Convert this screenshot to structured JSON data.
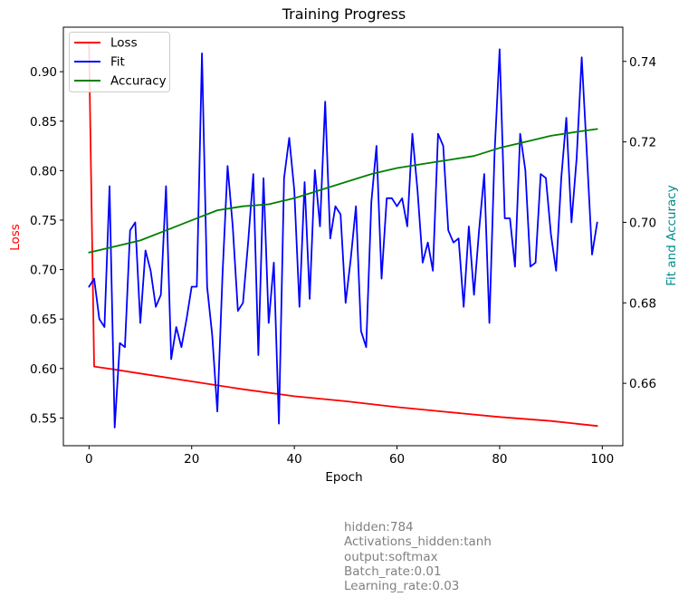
{
  "chart_data": {
    "type": "line",
    "title": "Training Progress",
    "xlabel": "Epoch",
    "ylabel_left": "Loss",
    "ylabel_right": "Fit and Accuracy",
    "xlim": [
      -5,
      104
    ],
    "ylim_left": [
      0.522,
      0.945
    ],
    "ylim_right": [
      0.6445,
      0.7485
    ],
    "x_ticks": [
      0,
      20,
      40,
      60,
      80,
      100
    ],
    "y_ticks_left": [
      0.55,
      0.6,
      0.65,
      0.7,
      0.75,
      0.8,
      0.85,
      0.9
    ],
    "y_ticks_right": [
      0.66,
      0.68,
      0.7,
      0.72,
      0.74
    ],
    "grid": false,
    "legend_position": "top-left",
    "series": [
      {
        "name": "Loss",
        "axis": "left",
        "color": "#ff0000",
        "x": [
          0,
          1,
          5,
          10,
          20,
          30,
          40,
          50,
          60,
          70,
          80,
          90,
          99
        ],
        "values": [
          0.928,
          0.602,
          0.599,
          0.595,
          0.587,
          0.579,
          0.572,
          0.567,
          0.561,
          0.556,
          0.551,
          0.547,
          0.542
        ]
      },
      {
        "name": "Fit",
        "axis": "right",
        "color": "#0000ff",
        "x": [
          0,
          1,
          2,
          3,
          4,
          5,
          6,
          7,
          8,
          9,
          10,
          11,
          12,
          13,
          14,
          15,
          16,
          17,
          18,
          19,
          20,
          21,
          22,
          23,
          24,
          25,
          26,
          27,
          28,
          29,
          30,
          31,
          32,
          33,
          34,
          35,
          36,
          37,
          38,
          39,
          40,
          41,
          42,
          43,
          44,
          45,
          46,
          47,
          48,
          49,
          50,
          51,
          52,
          53,
          54,
          55,
          56,
          57,
          58,
          59,
          60,
          61,
          62,
          63,
          64,
          65,
          66,
          67,
          68,
          69,
          70,
          71,
          72,
          73,
          74,
          75,
          76,
          77,
          78,
          79,
          80,
          81,
          82,
          83,
          84,
          85,
          86,
          87,
          88,
          89,
          90,
          91,
          92,
          93,
          94,
          95,
          96,
          97,
          98,
          99
        ],
        "values": [
          0.684,
          0.686,
          0.676,
          0.674,
          0.709,
          0.649,
          0.67,
          0.669,
          0.698,
          0.7,
          0.675,
          0.693,
          0.688,
          0.679,
          0.682,
          0.709,
          0.666,
          0.674,
          0.669,
          0.676,
          0.684,
          0.684,
          0.742,
          0.684,
          0.672,
          0.653,
          0.687,
          0.714,
          0.699,
          0.678,
          0.68,
          0.695,
          0.712,
          0.667,
          0.711,
          0.675,
          0.69,
          0.65,
          0.711,
          0.721,
          0.708,
          0.679,
          0.71,
          0.681,
          0.713,
          0.699,
          0.73,
          0.696,
          0.704,
          0.702,
          0.68,
          0.691,
          0.704,
          0.673,
          0.669,
          0.705,
          0.719,
          0.686,
          0.706,
          0.706,
          0.704,
          0.706,
          0.699,
          0.722,
          0.708,
          0.69,
          0.695,
          0.688,
          0.722,
          0.719,
          0.698,
          0.695,
          0.696,
          0.679,
          0.699,
          0.682,
          0.698,
          0.712,
          0.675,
          0.717,
          0.743,
          0.701,
          0.701,
          0.689,
          0.722,
          0.713,
          0.689,
          0.69,
          0.712,
          0.711,
          0.697,
          0.688,
          0.711,
          0.726,
          0.7,
          0.716,
          0.741,
          0.717,
          0.692,
          0.7
        ]
      },
      {
        "name": "Accuracy",
        "axis": "right",
        "color": "#008000",
        "x": [
          0,
          5,
          10,
          15,
          20,
          25,
          30,
          35,
          40,
          45,
          50,
          55,
          60,
          65,
          70,
          75,
          80,
          85,
          90,
          95,
          99
        ],
        "values": [
          0.6925,
          0.694,
          0.6955,
          0.698,
          0.7005,
          0.703,
          0.704,
          0.7045,
          0.706,
          0.708,
          0.71,
          0.712,
          0.7135,
          0.7145,
          0.7155,
          0.7165,
          0.7185,
          0.72,
          0.7215,
          0.7225,
          0.7232
        ]
      }
    ]
  },
  "notes": [
    "hidden:784",
    "Activations_hidden:tanh",
    "output:softmax",
    "Batch_rate:0.01",
    "Learning_rate:0.03"
  ]
}
